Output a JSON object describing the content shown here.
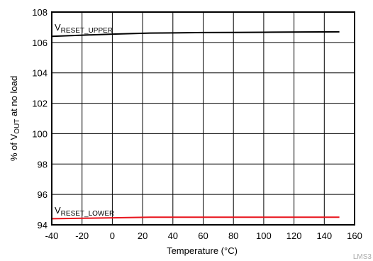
{
  "chart_data": {
    "type": "line",
    "xlabel": "Temperature (°C)",
    "ylabel": {
      "prefix": "% of V",
      "sub": "OUT",
      "suffix": " at no load"
    },
    "xlim": [
      -40,
      160
    ],
    "ylim": [
      94,
      108
    ],
    "x_ticks": [
      -40,
      -20,
      0,
      20,
      40,
      60,
      80,
      100,
      120,
      140,
      160
    ],
    "y_ticks": [
      94,
      96,
      98,
      100,
      102,
      104,
      106,
      108
    ],
    "grid": true,
    "series": [
      {
        "name": {
          "main": "V",
          "sub": "RESET_UPPER"
        },
        "color": "#000000",
        "x": [
          -40,
          -20,
          0,
          25,
          40,
          60,
          80,
          100,
          125,
          150
        ],
        "y": [
          106.4,
          106.48,
          106.55,
          106.62,
          106.63,
          106.65,
          106.66,
          106.67,
          106.69,
          106.7
        ]
      },
      {
        "name": {
          "main": "V",
          "sub": "RESET_LOWER"
        },
        "color": "#e8141c",
        "x": [
          -40,
          -20,
          0,
          25,
          40,
          60,
          80,
          100,
          125,
          150
        ],
        "y": [
          94.4,
          94.43,
          94.46,
          94.5,
          94.5,
          94.5,
          94.5,
          94.5,
          94.5,
          94.5
        ]
      }
    ],
    "watermark": "LMS3"
  }
}
